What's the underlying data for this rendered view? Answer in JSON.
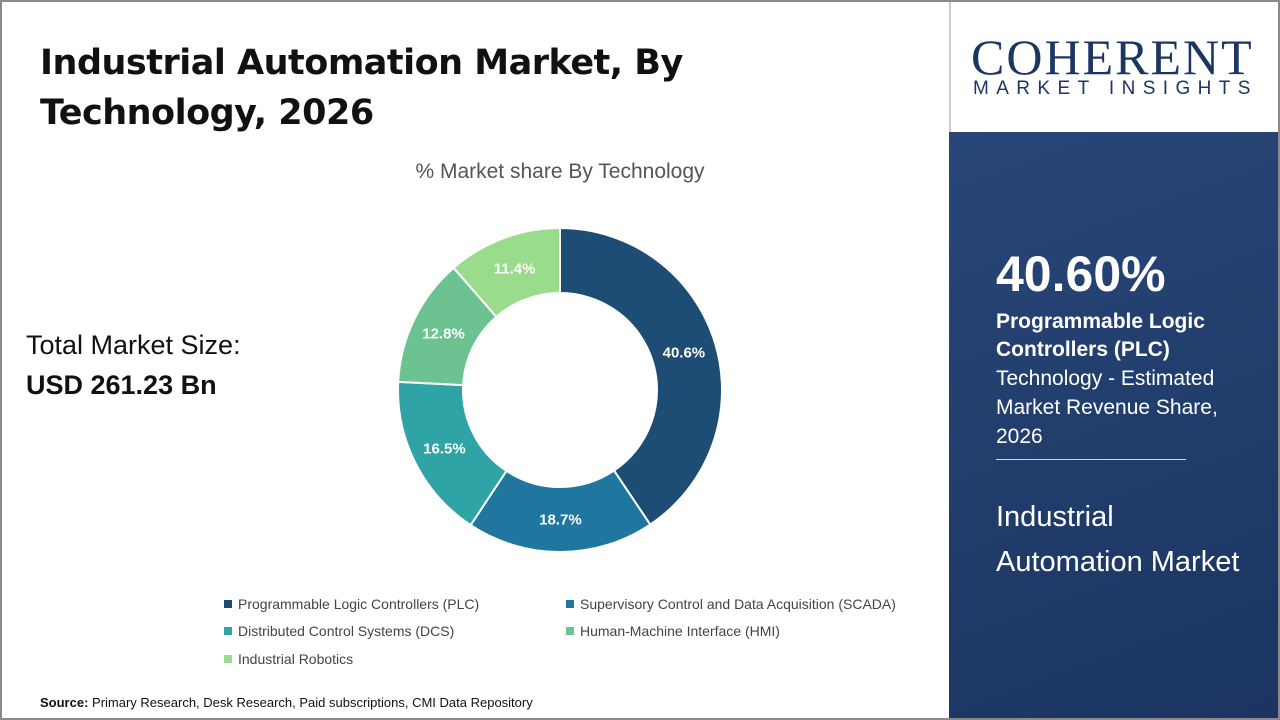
{
  "title": "Industrial Automation Market, By Technology, 2026",
  "total": {
    "label": "Total Market Size:",
    "value": "USD 261.23 Bn"
  },
  "source": {
    "label": "Source:",
    "text": " Primary Research, Desk Research, Paid subscriptions, CMI Data Repository"
  },
  "logo": {
    "big": "COHERENT",
    "small": "MARKET INSIGHTS"
  },
  "highlight": {
    "percent": "40.60%",
    "name": "Programmable Logic Controllers (PLC)",
    "desc": "Technology - Estimated Market Revenue Share, 2026",
    "market": "Industrial Automation Market"
  },
  "chart_data": {
    "type": "pie",
    "donut": true,
    "title": "% Market share By Technology",
    "categories": [
      "Programmable Logic Controllers (PLC)",
      "Supervisory Control and Data Acquisition (SCADA)",
      "Distributed Control Systems (DCS)",
      "Human-Machine Interface (HMI)",
      "Industrial Robotics"
    ],
    "values": [
      40.6,
      18.7,
      16.5,
      12.8,
      11.4
    ],
    "labels": [
      "40.6%",
      "18.7%",
      "16.5%",
      "12.8%",
      "11.4%"
    ],
    "colors": [
      "#1d4c74",
      "#1f77a0",
      "#2fa3a6",
      "#6cc391",
      "#98dc8c"
    ],
    "legend_position": "bottom"
  }
}
